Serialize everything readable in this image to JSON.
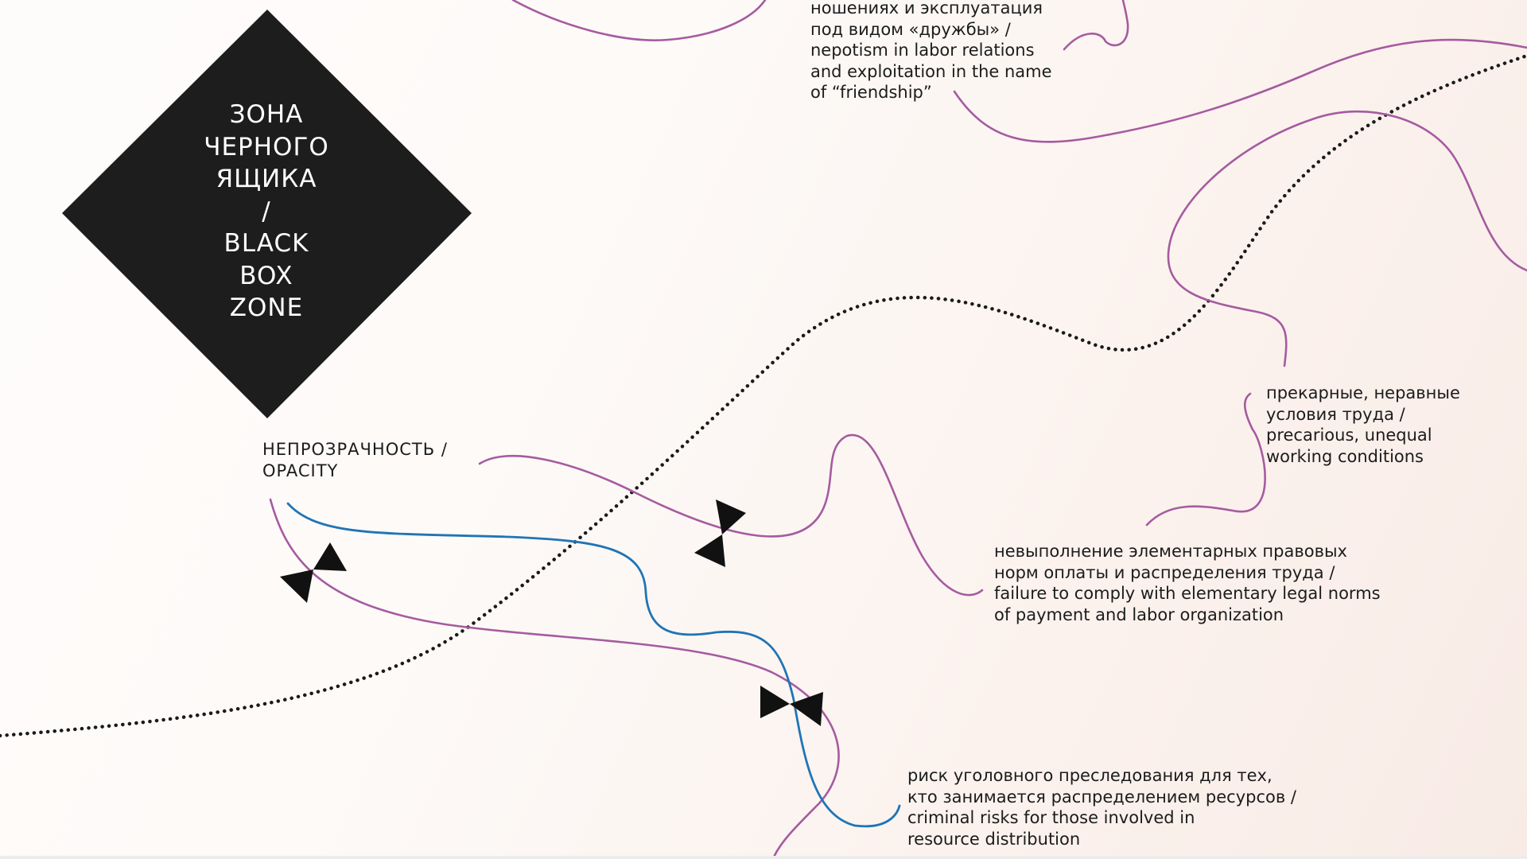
{
  "diagram": {
    "zone_title": "ЗОНА\nЧЕРНОГО\nЯЩИКА\n/\nBLACK\nBOX\nZONE",
    "labels": {
      "opacity": "НЕПРОЗРАЧНОСТЬ /\nOPACITY",
      "nepotism": "ношениях и эксплуатация\nпод видом «дружбы» /\nnepotism in labor relations\nand exploitation in the name\nof “friendship”",
      "precarious": "прекарные, неравные\nусловия труда /\nprecarious, unequal\nworking conditions",
      "failure": "невыполнение элементарных правовых\nнорм оплаты и распределения труда /\nfailure to comply with elementary legal norms\nof payment and labor organization",
      "criminal": "риск уголовного преследования для тех,\nкто занимается распределением ресурсов /\ncriminal risks for those involved in\nresource distribution"
    },
    "colors": {
      "diamond": "#1d1d1d",
      "purple_line": "#a55ba0",
      "blue_line": "#1f75b5",
      "dotted_line": "#1a1a1a",
      "valve": "#111111"
    },
    "icons": [
      "diamond-shape",
      "bowtie-valve-icon"
    ]
  }
}
